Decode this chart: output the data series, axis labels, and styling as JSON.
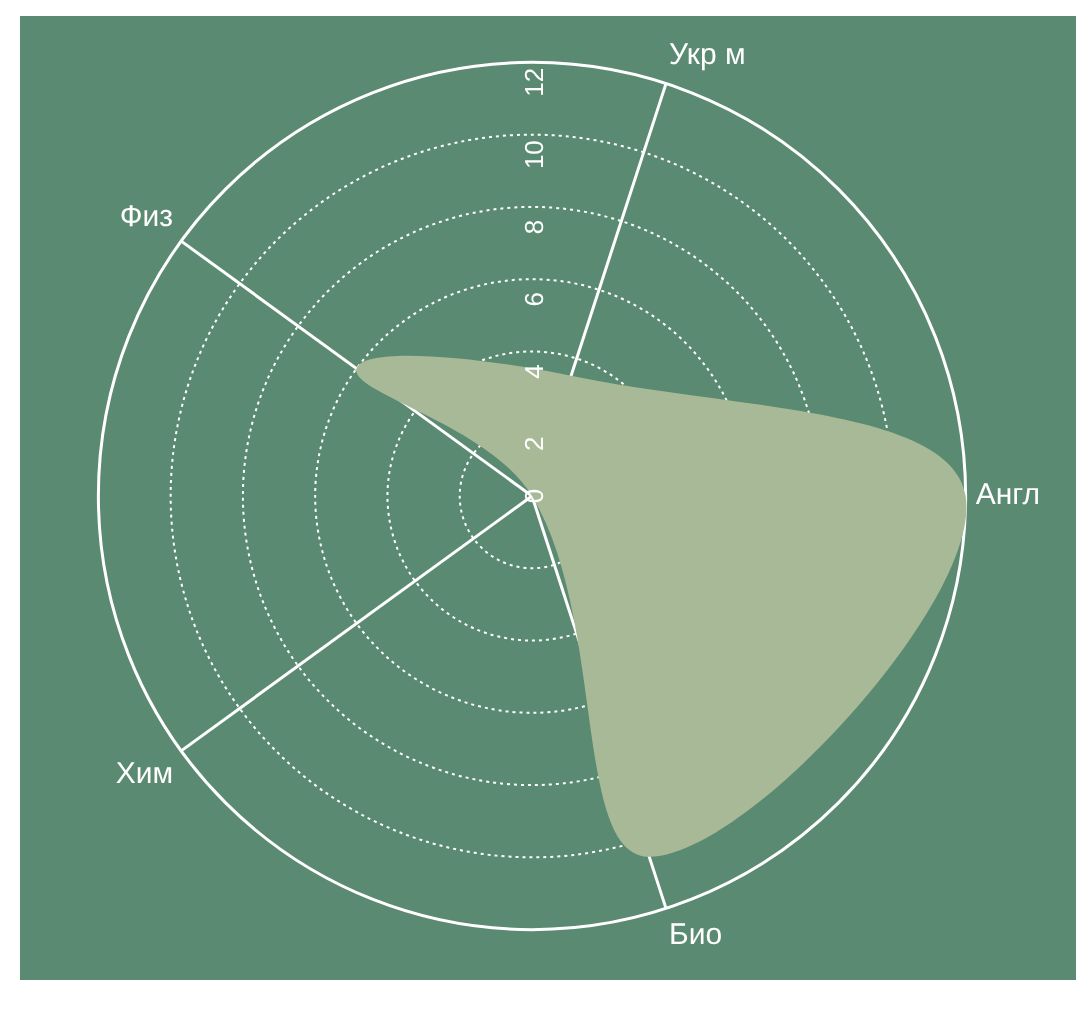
{
  "chart_data": {
    "type": "radar",
    "categories": [
      "Укр м",
      "Англ",
      "Био",
      "Хим",
      "Физ"
    ],
    "series": [
      {
        "color": "#a7b996",
        "values": [
          3.5,
          12,
          10.5,
          0,
          6
        ]
      }
    ],
    "ylim": [
      0,
      12
    ],
    "yticks": [
      0,
      2,
      4,
      6,
      8,
      10,
      12
    ],
    "grid": true
  }
}
